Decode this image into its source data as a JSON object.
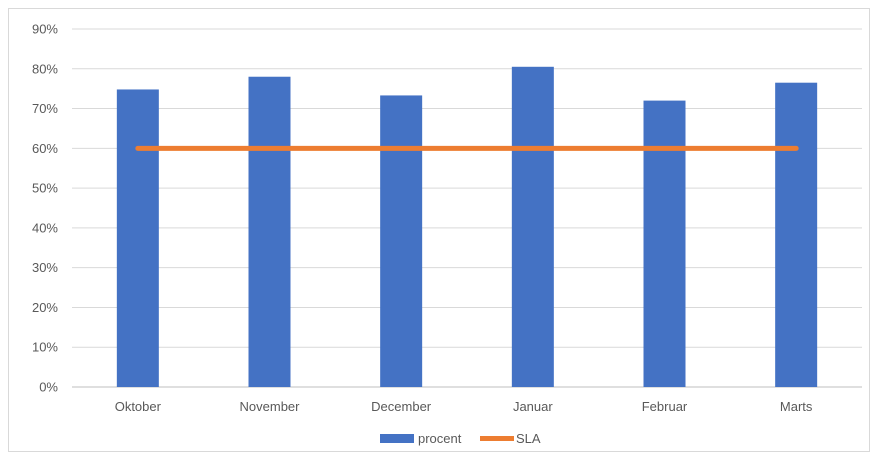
{
  "chart_data": {
    "type": "bar",
    "categories": [
      "Oktober",
      "November",
      "December",
      "Januar",
      "Februar",
      "Marts"
    ],
    "series": [
      {
        "name": "procent",
        "type": "bar",
        "values": [
          74.8,
          78.0,
          73.3,
          80.5,
          72.0,
          76.5
        ],
        "color": "#4472c4"
      },
      {
        "name": "SLA",
        "type": "line",
        "values": [
          60,
          60,
          60,
          60,
          60,
          60
        ],
        "color": "#ed7d31"
      }
    ],
    "yticks": [
      "0%",
      "10%",
      "20%",
      "30%",
      "40%",
      "50%",
      "60%",
      "70%",
      "80%",
      "90%"
    ],
    "ylim": [
      0,
      90
    ],
    "grid": true,
    "legend": "bottom",
    "gridline_color": "#d9d9d9",
    "axis_color": "#bfbfbf"
  }
}
